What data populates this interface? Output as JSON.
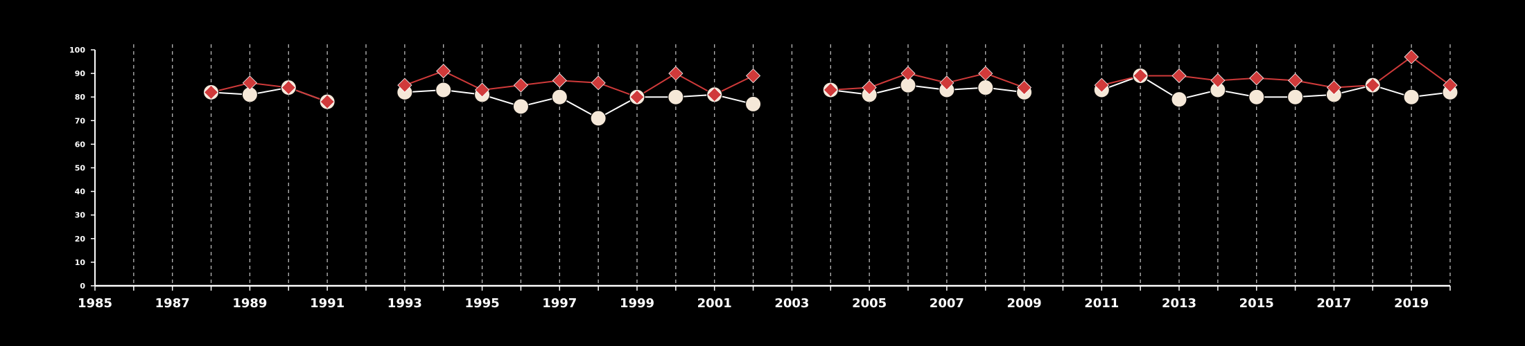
{
  "chart_data": {
    "type": "line",
    "title": "",
    "xlabel": "",
    "ylabel": "",
    "xlim": [
      1985,
      2020
    ],
    "ylim": [
      0,
      100
    ],
    "x_ticks": [
      1985,
      1987,
      1989,
      1991,
      1993,
      1995,
      1997,
      1999,
      2001,
      2003,
      2005,
      2007,
      2009,
      2011,
      2013,
      2015,
      2017,
      2019
    ],
    "y_ticks": [
      0,
      10,
      20,
      30,
      40,
      50,
      60,
      70,
      80,
      90,
      100
    ],
    "grid": "vertical dashed lines at every year",
    "legend": "none",
    "background_color": "#000000",
    "series": [
      {
        "marker": "circle",
        "color": "#f5e8d8",
        "line_color": "#ffffff",
        "points": [
          [
            1988,
            82
          ],
          [
            1989,
            81
          ],
          [
            1990,
            84
          ],
          [
            1991,
            78
          ],
          [
            1992,
            null
          ],
          [
            1993,
            82
          ],
          [
            1994,
            83
          ],
          [
            1995,
            81
          ],
          [
            1996,
            76
          ],
          [
            1997,
            80
          ],
          [
            1998,
            71
          ],
          [
            1999,
            80
          ],
          [
            2000,
            80
          ],
          [
            2001,
            81
          ],
          [
            2002,
            77
          ],
          [
            2003,
            null
          ],
          [
            2004,
            83
          ],
          [
            2005,
            81
          ],
          [
            2006,
            85
          ],
          [
            2007,
            83
          ],
          [
            2008,
            84
          ],
          [
            2009,
            82
          ],
          [
            2010,
            null
          ],
          [
            2011,
            83
          ],
          [
            2012,
            89
          ],
          [
            2013,
            79
          ],
          [
            2014,
            83
          ],
          [
            2015,
            80
          ],
          [
            2016,
            80
          ],
          [
            2017,
            81
          ],
          [
            2018,
            85
          ],
          [
            2019,
            80
          ],
          [
            2020,
            82
          ]
        ]
      },
      {
        "marker": "diamond",
        "color": "#d03a3a",
        "line_color": "#d03a3a",
        "points": [
          [
            1988,
            82
          ],
          [
            1989,
            86
          ],
          [
            1990,
            84
          ],
          [
            1991,
            78
          ],
          [
            1992,
            null
          ],
          [
            1993,
            85
          ],
          [
            1994,
            91
          ],
          [
            1995,
            83
          ],
          [
            1996,
            85
          ],
          [
            1997,
            87
          ],
          [
            1998,
            86
          ],
          [
            1999,
            80
          ],
          [
            2000,
            90
          ],
          [
            2001,
            81
          ],
          [
            2002,
            89
          ],
          [
            2003,
            null
          ],
          [
            2004,
            83
          ],
          [
            2005,
            84
          ],
          [
            2006,
            90
          ],
          [
            2007,
            86
          ],
          [
            2008,
            90
          ],
          [
            2009,
            84
          ],
          [
            2010,
            null
          ],
          [
            2011,
            85
          ],
          [
            2012,
            89
          ],
          [
            2013,
            89
          ],
          [
            2014,
            87
          ],
          [
            2015,
            88
          ],
          [
            2016,
            87
          ],
          [
            2017,
            84
          ],
          [
            2018,
            85
          ],
          [
            2019,
            97
          ],
          [
            2020,
            85
          ]
        ]
      }
    ]
  }
}
